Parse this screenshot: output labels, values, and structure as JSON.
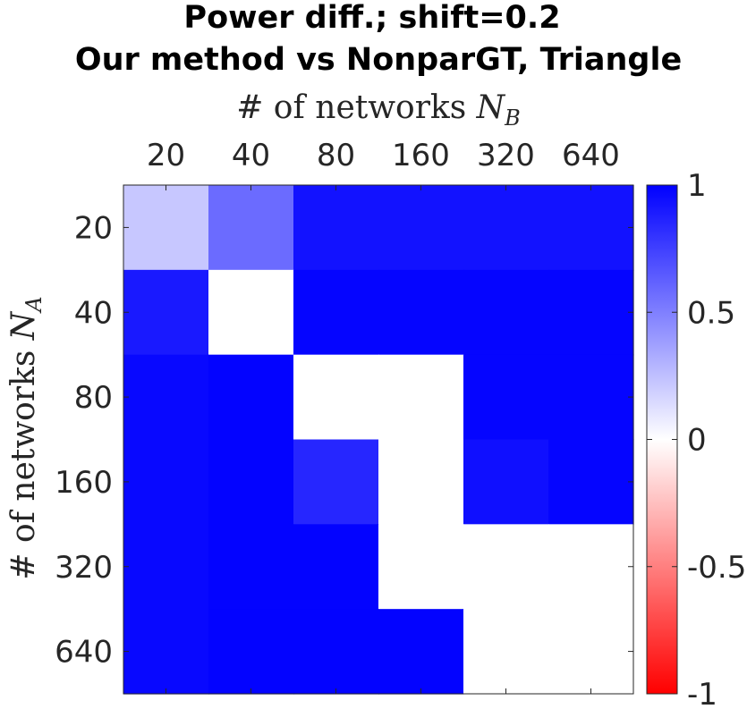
{
  "chart_data": {
    "type": "heatmap",
    "title": [
      "Power diff.; shift=0.2",
      "Our method vs NonparGT, Triangle"
    ],
    "xlabel": {
      "text": "# of networks ",
      "symbol": "N",
      "subscript": "B"
    },
    "ylabel": {
      "text": "# of networks ",
      "symbol": "N",
      "subscript": "A"
    },
    "x_categories": [
      "20",
      "40",
      "80",
      "160",
      "320",
      "640"
    ],
    "y_categories": [
      "20",
      "40",
      "80",
      "160",
      "320",
      "640"
    ],
    "x_axis_position": "top",
    "values": [
      [
        0.22,
        0.58,
        0.93,
        0.93,
        0.93,
        0.93
      ],
      [
        0.9,
        0.0,
        0.98,
        0.98,
        0.98,
        0.98
      ],
      [
        0.97,
        0.99,
        0.0,
        0.0,
        0.98,
        0.98
      ],
      [
        0.97,
        0.99,
        0.85,
        0.0,
        0.94,
        0.98
      ],
      [
        0.97,
        0.99,
        0.99,
        0.0,
        0.0,
        0.0
      ],
      [
        0.97,
        0.99,
        0.99,
        0.99,
        0.0,
        0.0
      ]
    ],
    "colorbar": {
      "range": [
        -1,
        1
      ],
      "ticks": [
        1,
        0.5,
        0,
        -0.5,
        -1
      ],
      "tick_labels": [
        "1",
        "0.5",
        "0",
        "-0.5",
        "-1"
      ],
      "colormap": [
        "#ff0000",
        "#ffffff",
        "#0000ff"
      ]
    },
    "grid": false
  }
}
